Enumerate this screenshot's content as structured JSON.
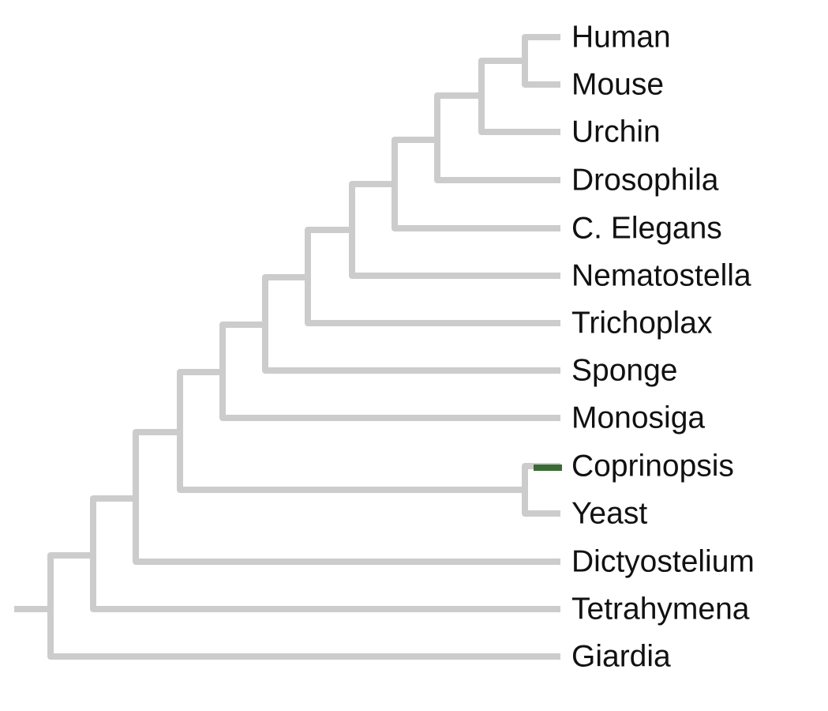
{
  "tree": {
    "leaves": [
      "Human",
      "Mouse",
      "Urchin",
      "Drosophila",
      "C. Elegans",
      "Nematostella",
      "Trichoplax",
      "Sponge",
      "Monosiga",
      "Coprinopsis",
      "Yeast",
      "Dictyostelium",
      "Tetrahymena",
      "Giardia"
    ]
  }
}
